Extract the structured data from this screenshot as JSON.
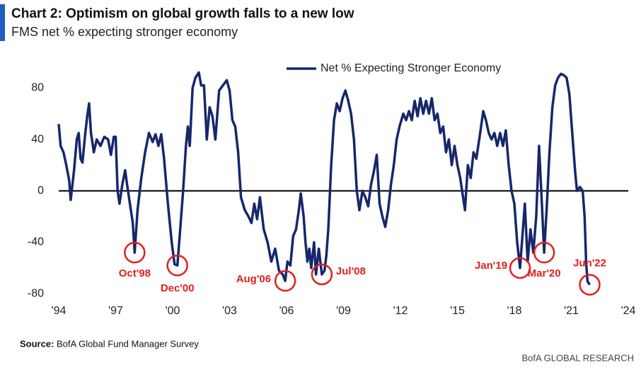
{
  "chart_data": {
    "type": "line",
    "title": "Chart 2: Optimism on global growth falls to a new low",
    "subtitle": "FMS net % expecting stronger economy",
    "source": {
      "label": "Source:",
      "text": "BofA Global Fund Manager Survey"
    },
    "footer": "BofA GLOBAL RESEARCH",
    "x": [
      1994.0,
      1994.1,
      1994.25,
      1994.4,
      1994.55,
      1994.63,
      1994.8,
      1994.95,
      1995.05,
      1995.15,
      1995.25,
      1995.4,
      1995.5,
      1995.6,
      1995.7,
      1995.85,
      1996.0,
      1996.2,
      1996.4,
      1996.6,
      1996.75,
      1996.9,
      1997.0,
      1997.1,
      1997.2,
      1997.35,
      1997.5,
      1997.6,
      1997.75,
      1997.9,
      1998.0,
      1998.15,
      1998.35,
      1998.55,
      1998.75,
      1998.95,
      1999.1,
      1999.25,
      1999.4,
      1999.55,
      1999.75,
      1999.95,
      2000.1,
      2000.25,
      2000.4,
      2000.55,
      2000.7,
      2000.8,
      2000.9,
      2001.05,
      2001.2,
      2001.38,
      2001.5,
      2001.65,
      2001.8,
      2001.95,
      2002.1,
      2002.25,
      2002.45,
      2002.65,
      2002.85,
      2003.0,
      2003.15,
      2003.3,
      2003.45,
      2003.6,
      2003.8,
      2004.0,
      2004.15,
      2004.3,
      2004.45,
      2004.6,
      2004.8,
      2005.0,
      2005.2,
      2005.4,
      2005.6,
      2005.8,
      2005.93,
      2006.05,
      2006.2,
      2006.35,
      2006.5,
      2006.65,
      2006.75,
      2006.9,
      2007.0,
      2007.1,
      2007.2,
      2007.3,
      2007.45,
      2007.55,
      2007.7,
      2007.86,
      2008.0,
      2008.1,
      2008.2,
      2008.35,
      2008.5,
      2008.65,
      2008.8,
      2008.95,
      2009.1,
      2009.25,
      2009.4,
      2009.55,
      2009.7,
      2009.84,
      2010.0,
      2010.15,
      2010.3,
      2010.45,
      2010.6,
      2010.75,
      2010.9,
      2011.05,
      2011.2,
      2011.35,
      2011.5,
      2011.65,
      2011.8,
      2011.95,
      2012.15,
      2012.3,
      2012.45,
      2012.6,
      2012.75,
      2012.9,
      2013.05,
      2013.2,
      2013.35,
      2013.5,
      2013.65,
      2013.8,
      2013.95,
      2014.1,
      2014.25,
      2014.4,
      2014.55,
      2014.7,
      2014.85,
      2015.0,
      2015.15,
      2015.3,
      2015.4,
      2015.55,
      2015.7,
      2015.85,
      2016.0,
      2016.2,
      2016.36,
      2016.5,
      2016.65,
      2016.8,
      2016.95,
      2017.1,
      2017.25,
      2017.4,
      2017.55,
      2017.7,
      2017.85,
      2018.0,
      2018.15,
      2018.3,
      2018.45,
      2018.55,
      2018.7,
      2018.85,
      2019.0,
      2019.15,
      2019.3,
      2019.45,
      2019.57,
      2019.7,
      2019.85,
      2020.0,
      2020.15,
      2020.3,
      2020.45,
      2020.6,
      2020.75,
      2020.9,
      2021.05,
      2021.2,
      2021.3,
      2021.45,
      2021.6,
      2021.7,
      2021.78,
      2021.85,
      2021.92,
      2021.97
    ],
    "series": [
      {
        "name": "Net % Expecting Stronger Economy",
        "color": "#16276b",
        "values": [
          52,
          35,
          30,
          20,
          8,
          -7,
          15,
          40,
          45,
          25,
          22,
          45,
          58,
          68,
          45,
          30,
          40,
          35,
          42,
          40,
          28,
          42,
          42,
          0,
          -10,
          5,
          16,
          5,
          -10,
          -25,
          -48,
          -15,
          10,
          30,
          45,
          38,
          44,
          35,
          44,
          25,
          -10,
          -40,
          -57,
          -58,
          -30,
          0,
          35,
          50,
          35,
          80,
          88,
          92,
          82,
          82,
          40,
          65,
          58,
          40,
          78,
          82,
          86,
          78,
          55,
          50,
          30,
          -5,
          -15,
          -20,
          -25,
          -10,
          -22,
          -5,
          -30,
          -40,
          -55,
          -45,
          -62,
          -65,
          -70,
          -55,
          -58,
          -35,
          -30,
          -15,
          -2,
          -20,
          -40,
          -55,
          -45,
          -60,
          -40,
          -65,
          -45,
          -65,
          -62,
          -50,
          -30,
          20,
          55,
          68,
          62,
          72,
          78,
          70,
          60,
          40,
          0,
          -15,
          0,
          -5,
          -12,
          5,
          15,
          28,
          -10,
          -20,
          -28,
          -15,
          5,
          20,
          40,
          50,
          60,
          55,
          62,
          55,
          70,
          58,
          72,
          60,
          70,
          60,
          72,
          55,
          60,
          45,
          50,
          30,
          40,
          20,
          35,
          20,
          10,
          -5,
          -15,
          20,
          10,
          30,
          25,
          45,
          62,
          55,
          45,
          40,
          45,
          35,
          45,
          35,
          47,
          20,
          0,
          -10,
          -40,
          -60,
          -30,
          -10,
          -55,
          -30,
          -48,
          -20,
          35,
          -10,
          -48,
          -15,
          30,
          65,
          82,
          88,
          91,
          90,
          88,
          75,
          45,
          15,
          0,
          3,
          0,
          -20,
          -55,
          -70,
          -72,
          -73
        ]
      }
    ],
    "annotations": [
      {
        "text": "Oct'98",
        "x": 1998.0,
        "y": -48
      },
      {
        "text": "Dec'00",
        "x": 2000.25,
        "y": -58
      },
      {
        "text": "Aug'06",
        "x": 2005.93,
        "y": -70
      },
      {
        "text": "Jul'08",
        "x": 2007.86,
        "y": -65
      },
      {
        "text": "Jan'19",
        "x": 2018.3,
        "y": -60
      },
      {
        "text": "Mar'20",
        "x": 2019.57,
        "y": -48
      },
      {
        "text": "Jun'22",
        "x": 2021.97,
        "y": -73
      }
    ],
    "xlim": [
      1994,
      2024
    ],
    "xticks": [
      {
        "value": 1994,
        "label": "'94"
      },
      {
        "value": 1997,
        "label": "'97"
      },
      {
        "value": 2000,
        "label": "'00"
      },
      {
        "value": 2003,
        "label": "'03"
      },
      {
        "value": 2006,
        "label": "'06"
      },
      {
        "value": 2009,
        "label": "'09"
      },
      {
        "value": 2012,
        "label": "'12"
      },
      {
        "value": 2015,
        "label": "'15"
      },
      {
        "value": 2018,
        "label": "'18"
      },
      {
        "value": 2021,
        "label": "'21"
      },
      {
        "value": 2024,
        "label": "'24"
      }
    ],
    "ylim": [
      -92,
      100
    ],
    "yticks": [
      -80,
      -40,
      0,
      40,
      80
    ],
    "legend": "top"
  }
}
